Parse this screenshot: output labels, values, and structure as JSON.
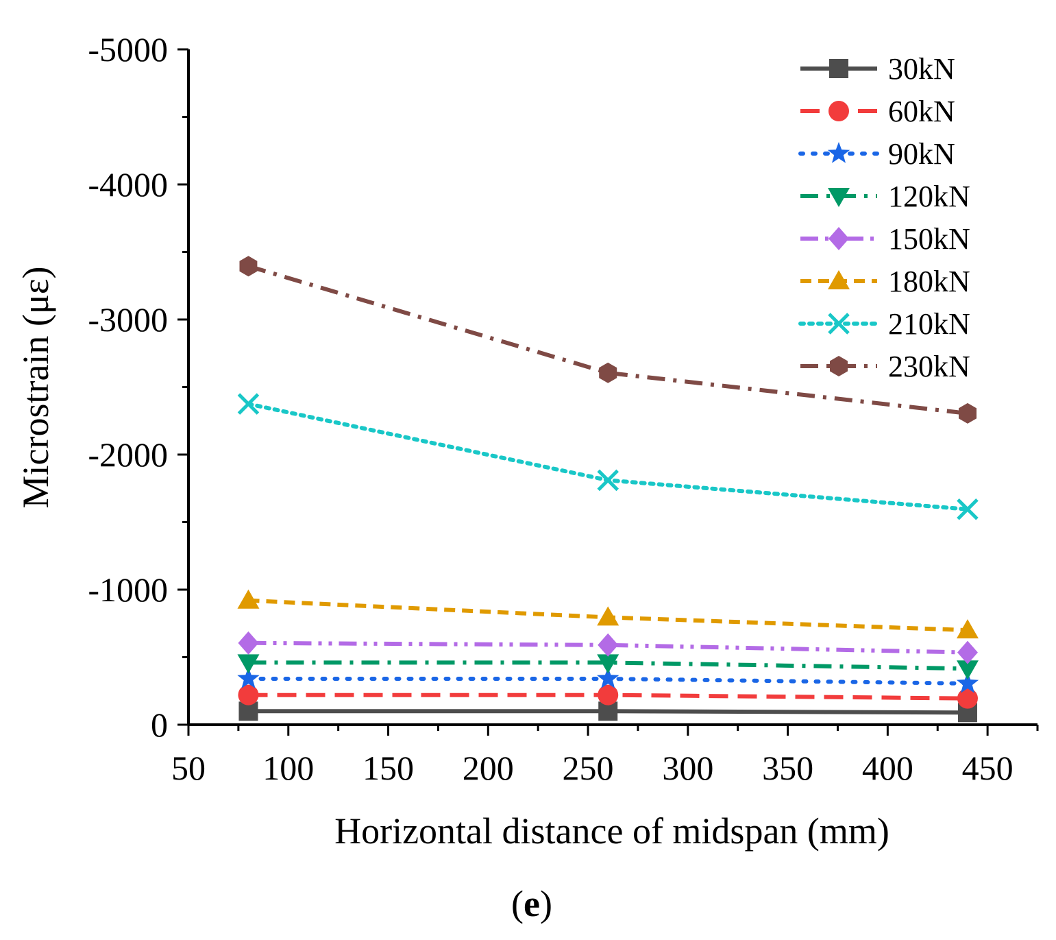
{
  "chart_data": {
    "type": "line",
    "xlabel": "Horizontal distance of midspan (mm)",
    "ylabel": "Microstrain (με)",
    "panel_label_open": "(",
    "panel_label_letter": "e",
    "panel_label_close": ")",
    "xlim": [
      50,
      475
    ],
    "ylim": [
      0,
      -5000
    ],
    "y_axis_inverted": true,
    "xticks": [
      50,
      100,
      150,
      200,
      250,
      300,
      350,
      400,
      450
    ],
    "yticks": [
      0,
      -1000,
      -2000,
      -3000,
      -4000,
      -5000
    ],
    "legend_position": "top-right",
    "grid": false,
    "x": [
      80,
      260,
      440
    ],
    "series": [
      {
        "name": "30kN",
        "values": [
          -100,
          -100,
          -90
        ],
        "color": "#4d4d4d",
        "marker": "square",
        "dash": "solid"
      },
      {
        "name": "60kN",
        "values": [
          -220,
          -220,
          -195
        ],
        "color": "#f23c3c",
        "marker": "circle",
        "dash": "dash"
      },
      {
        "name": "90kN",
        "values": [
          -340,
          -340,
          -305
        ],
        "color": "#1a66e6",
        "marker": "star",
        "dash": "dot"
      },
      {
        "name": "120kN",
        "values": [
          -460,
          -460,
          -415
        ],
        "color": "#009966",
        "marker": "triangle-down",
        "dash": "dashdot"
      },
      {
        "name": "150kN",
        "values": [
          -605,
          -590,
          -535
        ],
        "color": "#b36be6",
        "marker": "diamond",
        "dash": "dashdotdot"
      },
      {
        "name": "180kN",
        "values": [
          -920,
          -795,
          -700
        ],
        "color": "#e09a00",
        "marker": "triangle-up",
        "dash": "shortdash"
      },
      {
        "name": "210kN",
        "values": [
          -2375,
          -1810,
          -1595
        ],
        "color": "#19c7c7",
        "marker": "x",
        "dash": "densedot"
      },
      {
        "name": "230kN",
        "values": [
          -3395,
          -2605,
          -2305
        ],
        "color": "#7f4a45",
        "marker": "hexagon",
        "dash": "dashdot"
      }
    ]
  }
}
